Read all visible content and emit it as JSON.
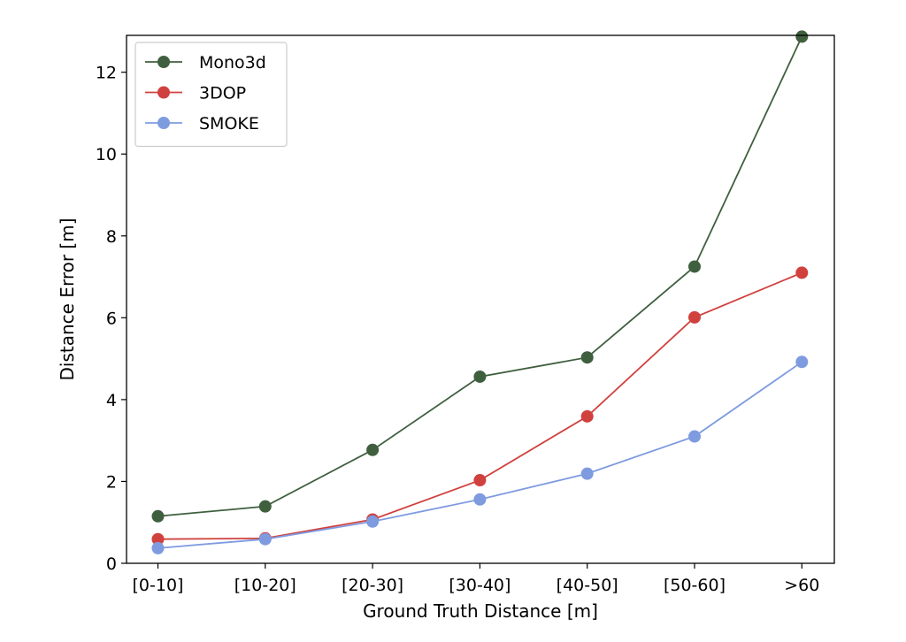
{
  "chart_data": {
    "type": "line",
    "title": "",
    "xlabel": "Ground Truth Distance [m]",
    "ylabel": "Distance Error [m]",
    "categories": [
      "[0-10]",
      "[10-20]",
      "[20-30]",
      "[30-40]",
      "[40-50]",
      "[50-60]",
      ">60"
    ],
    "ylim": [
      0,
      12.9
    ],
    "yticks": [
      0,
      2,
      4,
      6,
      8,
      10,
      12
    ],
    "grid": false,
    "legend_position": "top-left",
    "series": [
      {
        "name": "Mono3d",
        "color": "#3f5f3f",
        "values": [
          1.15,
          1.39,
          2.77,
          4.56,
          5.03,
          7.25,
          12.87
        ]
      },
      {
        "name": "3DOP",
        "color": "#d0413e",
        "values": [
          0.59,
          0.61,
          1.07,
          2.03,
          3.59,
          6.01,
          7.1
        ]
      },
      {
        "name": "SMOKE",
        "color": "#7f9be0",
        "values": [
          0.37,
          0.59,
          1.02,
          1.56,
          2.19,
          3.1,
          4.92
        ]
      }
    ]
  }
}
